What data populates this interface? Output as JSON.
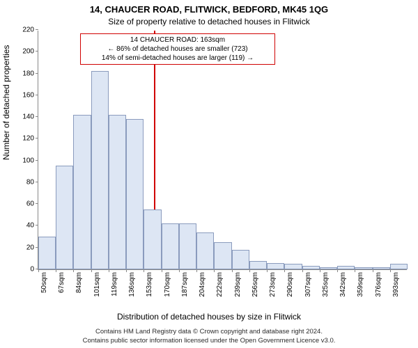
{
  "title_main": "14, CHAUCER ROAD, FLITWICK, BEDFORD, MK45 1QG",
  "title_sub": "Size of property relative to detached houses in Flitwick",
  "ylabel": "Number of detached properties",
  "xlabel": "Distribution of detached houses by size in Flitwick",
  "chart": {
    "type": "histogram",
    "ylim": [
      0,
      220
    ],
    "ytick_step": 20,
    "xtick_labels": [
      "50sqm",
      "67sqm",
      "84sqm",
      "101sqm",
      "119sqm",
      "136sqm",
      "153sqm",
      "170sqm",
      "187sqm",
      "204sqm",
      "222sqm",
      "239sqm",
      "256sqm",
      "273sqm",
      "290sqm",
      "307sqm",
      "325sqm",
      "342sqm",
      "359sqm",
      "376sqm",
      "393sqm"
    ],
    "values": [
      30,
      95,
      142,
      182,
      142,
      138,
      55,
      42,
      42,
      34,
      25,
      18,
      8,
      6,
      5,
      3,
      2,
      3,
      2,
      2,
      5
    ],
    "bar_fill": "#dde6f4",
    "bar_stroke": "#8a9bbd",
    "axis_color": "#888888",
    "background_color": "#ffffff",
    "title_fontsize": 13,
    "label_fontsize": 12,
    "tick_fontsize": 10
  },
  "reference": {
    "value_sqm": 163,
    "line_color": "#d00000",
    "border_color": "#d00000",
    "line1": "14 CHAUCER ROAD: 163sqm",
    "line2": "← 86% of detached houses are smaller (723)",
    "line3": "14% of semi-detached houses are larger (119) →"
  },
  "footer": {
    "line1": "Contains HM Land Registry data © Crown copyright and database right 2024.",
    "line2": "Contains public sector information licensed under the Open Government Licence v3.0."
  }
}
